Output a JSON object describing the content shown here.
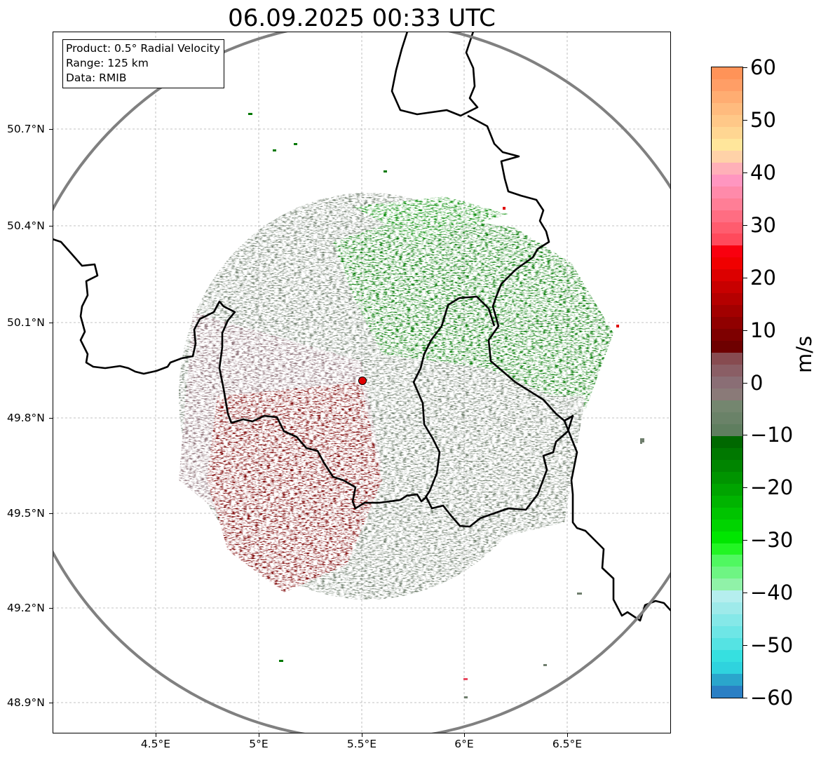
{
  "title": "06.09.2025 00:33 UTC",
  "info": {
    "product": "Product: 0.5° Radial Velocity",
    "range": "Range: 125 km",
    "data": "Data: RMIB"
  },
  "y_ticks": [
    "50.7°N",
    "50.4°N",
    "50.1°N",
    "49.8°N",
    "49.5°N",
    "49.2°N",
    "48.9°N"
  ],
  "x_ticks": [
    "4.5°E",
    "5°E",
    "5.5°E",
    "6°E",
    "6.5°E"
  ],
  "colorbar": {
    "unit": "m/s",
    "min": -60,
    "max": 60,
    "tick_values": [
      60,
      50,
      40,
      30,
      20,
      10,
      0,
      -10,
      -20,
      -30,
      -40,
      -50,
      -60
    ],
    "tick_labels": [
      "60",
      "50",
      "40",
      "30",
      "20",
      "10",
      "0",
      "−10",
      "−20",
      "−30",
      "−40",
      "−50",
      "−60"
    ],
    "colors_bottom_to_top": [
      "#2a7fc4",
      "#2aa6cc",
      "#2fd3de",
      "#36e0e0",
      "#55e3e3",
      "#6ee6e6",
      "#85e8e8",
      "#9eeaea",
      "#b5eeee",
      "#90f2a8",
      "#6ef583",
      "#50f860",
      "#22f523",
      "#00e600",
      "#00d400",
      "#00c400",
      "#00b400",
      "#00a400",
      "#009400",
      "#008500",
      "#007800",
      "#006800",
      "#5f7e5f",
      "#6a8268",
      "#74866f",
      "#8a7a78",
      "#8a6e75",
      "#8a5e65",
      "#874b50",
      "#6e0000",
      "#7e0000",
      "#900000",
      "#a20000",
      "#b50000",
      "#c80000",
      "#dc0000",
      "#f00000",
      "#f9000f",
      "#ff4a5c",
      "#ff5c6e",
      "#ff6d82",
      "#ff7e96",
      "#ff8aaa",
      "#ff96c0",
      "#ffb0b8",
      "#ffd2a8",
      "#ffe69b",
      "#ffd692",
      "#ffc888",
      "#ffbb7e",
      "#ffad72",
      "#ff9e66",
      "#ff9358"
    ]
  },
  "colors": {
    "inbound": "#007800",
    "outbound": "#7a0000",
    "near_zero": "#6f7e6d",
    "radar_site": "#e00000",
    "range_ring": "#808080",
    "borders": "#000000"
  }
}
